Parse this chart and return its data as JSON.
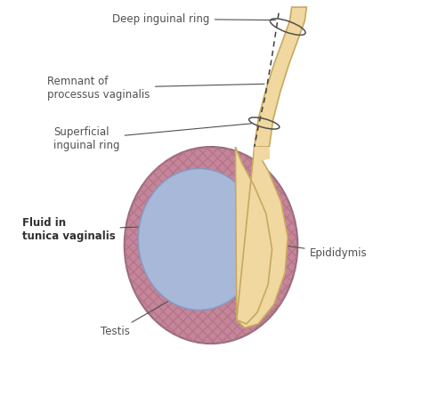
{
  "bg_color": "#ffffff",
  "tunica_color": "#c8849a",
  "fluid_color": "#a8b8d8",
  "fluid_edge_color": "#8898c0",
  "epididymis_color": "#f0d8a0",
  "epididymis_edge": "#c8a860",
  "cord_color": "#f0d8a0",
  "cord_edge": "#c8a860",
  "label_color": "#505050",
  "labels": {
    "deep_inguinal_ring": "Deep inguinal ring",
    "remnant": "Remnant of\nprocessus vaginalis",
    "superficial_ring": "Superficial\ninguinal ring",
    "fluid": "Fluid in\ntunica vaginalis",
    "epididymis": "Epididymis",
    "testis": "Testis"
  },
  "xlim": [
    0,
    10
  ],
  "ylim": [
    0,
    10
  ]
}
